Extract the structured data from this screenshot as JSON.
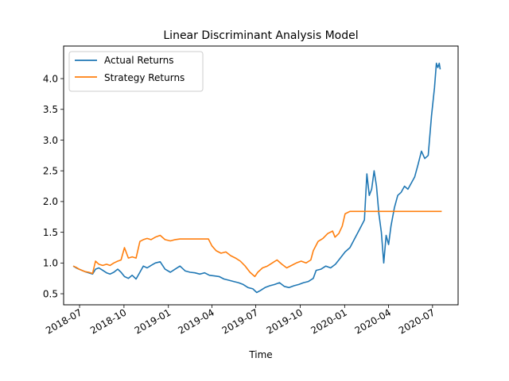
{
  "chart_data": {
    "type": "line",
    "title": "Linear Discriminant Analysis Model",
    "xlabel": "Time",
    "ylabel": "",
    "xlim": [
      "2018-05-29",
      "2020-08-23"
    ],
    "ylim": [
      0.32,
      4.53
    ],
    "yticks": [
      0.5,
      1.0,
      1.5,
      2.0,
      2.5,
      3.0,
      3.5,
      4.0
    ],
    "ytick_labels": [
      "0.5",
      "1.0",
      "1.5",
      "2.0",
      "2.5",
      "3.0",
      "3.5",
      "4.0"
    ],
    "xticks": [
      "2018-07-01",
      "2018-10-01",
      "2019-01-01",
      "2019-04-01",
      "2019-07-01",
      "2019-10-01",
      "2020-01-01",
      "2020-04-01",
      "2020-07-01"
    ],
    "xtick_labels": [
      "2018-07",
      "2018-10",
      "2019-01",
      "2019-04",
      "2019-07",
      "2019-10",
      "2020-01",
      "2020-04",
      "2020-07"
    ],
    "grid": false,
    "legend_position": "top-left",
    "series": [
      {
        "name": "Actual Returns",
        "color": "#1f77b4",
        "points": [
          [
            "2018-06-18",
            0.95
          ],
          [
            "2018-06-24",
            0.92
          ],
          [
            "2018-06-30",
            0.9
          ],
          [
            "2018-07-06",
            0.88
          ],
          [
            "2018-07-12",
            0.86
          ],
          [
            "2018-07-20",
            0.84
          ],
          [
            "2018-07-28",
            0.82
          ],
          [
            "2018-08-03",
            0.9
          ],
          [
            "2018-08-10",
            0.92
          ],
          [
            "2018-08-18",
            0.88
          ],
          [
            "2018-08-26",
            0.84
          ],
          [
            "2018-09-02",
            0.82
          ],
          [
            "2018-09-10",
            0.85
          ],
          [
            "2018-09-18",
            0.9
          ],
          [
            "2018-09-25",
            0.85
          ],
          [
            "2018-10-02",
            0.78
          ],
          [
            "2018-10-10",
            0.75
          ],
          [
            "2018-10-18",
            0.8
          ],
          [
            "2018-10-26",
            0.74
          ],
          [
            "2018-11-03",
            0.85
          ],
          [
            "2018-11-10",
            0.95
          ],
          [
            "2018-11-18",
            0.92
          ],
          [
            "2018-11-26",
            0.96
          ],
          [
            "2018-12-05",
            1.0
          ],
          [
            "2018-12-15",
            1.02
          ],
          [
            "2018-12-25",
            0.9
          ],
          [
            "2019-01-05",
            0.85
          ],
          [
            "2019-01-15",
            0.9
          ],
          [
            "2019-01-25",
            0.95
          ],
          [
            "2019-02-05",
            0.87
          ],
          [
            "2019-02-15",
            0.85
          ],
          [
            "2019-02-25",
            0.84
          ],
          [
            "2019-03-07",
            0.82
          ],
          [
            "2019-03-17",
            0.84
          ],
          [
            "2019-03-27",
            0.8
          ],
          [
            "2019-04-06",
            0.79
          ],
          [
            "2019-04-16",
            0.78
          ],
          [
            "2019-04-26",
            0.74
          ],
          [
            "2019-05-06",
            0.72
          ],
          [
            "2019-05-16",
            0.7
          ],
          [
            "2019-05-26",
            0.68
          ],
          [
            "2019-06-05",
            0.65
          ],
          [
            "2019-06-15",
            0.6
          ],
          [
            "2019-06-25",
            0.58
          ],
          [
            "2019-07-03",
            0.52
          ],
          [
            "2019-07-10",
            0.55
          ],
          [
            "2019-07-20",
            0.6
          ],
          [
            "2019-07-30",
            0.63
          ],
          [
            "2019-08-09",
            0.65
          ],
          [
            "2019-08-19",
            0.68
          ],
          [
            "2019-08-29",
            0.62
          ],
          [
            "2019-09-08",
            0.6
          ],
          [
            "2019-09-18",
            0.63
          ],
          [
            "2019-09-28",
            0.65
          ],
          [
            "2019-10-08",
            0.68
          ],
          [
            "2019-10-18",
            0.7
          ],
          [
            "2019-10-28",
            0.75
          ],
          [
            "2019-11-03",
            0.88
          ],
          [
            "2019-11-13",
            0.9
          ],
          [
            "2019-11-23",
            0.95
          ],
          [
            "2019-12-03",
            0.92
          ],
          [
            "2019-12-13",
            0.98
          ],
          [
            "2019-12-23",
            1.08
          ],
          [
            "2020-01-02",
            1.18
          ],
          [
            "2020-01-12",
            1.25
          ],
          [
            "2020-01-22",
            1.4
          ],
          [
            "2020-02-01",
            1.55
          ],
          [
            "2020-02-11",
            1.7
          ],
          [
            "2020-02-16",
            2.45
          ],
          [
            "2020-02-21",
            2.1
          ],
          [
            "2020-02-26",
            2.2
          ],
          [
            "2020-03-02",
            2.5
          ],
          [
            "2020-03-07",
            2.25
          ],
          [
            "2020-03-12",
            1.8
          ],
          [
            "2020-03-17",
            1.5
          ],
          [
            "2020-03-22",
            1.0
          ],
          [
            "2020-03-27",
            1.45
          ],
          [
            "2020-04-01",
            1.3
          ],
          [
            "2020-04-06",
            1.6
          ],
          [
            "2020-04-13",
            1.9
          ],
          [
            "2020-04-20",
            2.1
          ],
          [
            "2020-04-27",
            2.15
          ],
          [
            "2020-05-04",
            2.25
          ],
          [
            "2020-05-11",
            2.2
          ],
          [
            "2020-05-18",
            2.3
          ],
          [
            "2020-05-25",
            2.4
          ],
          [
            "2020-06-01",
            2.6
          ],
          [
            "2020-06-08",
            2.82
          ],
          [
            "2020-06-15",
            2.7
          ],
          [
            "2020-06-22",
            2.75
          ],
          [
            "2020-06-29",
            3.4
          ],
          [
            "2020-07-05",
            3.85
          ],
          [
            "2020-07-09",
            4.25
          ],
          [
            "2020-07-12",
            4.18
          ],
          [
            "2020-07-15",
            4.25
          ],
          [
            "2020-07-17",
            4.15
          ]
        ]
      },
      {
        "name": "Strategy Returns",
        "color": "#ff7f0e",
        "points": [
          [
            "2018-06-18",
            0.95
          ],
          [
            "2018-06-24",
            0.93
          ],
          [
            "2018-06-30",
            0.9
          ],
          [
            "2018-07-06",
            0.88
          ],
          [
            "2018-07-12",
            0.86
          ],
          [
            "2018-07-20",
            0.85
          ],
          [
            "2018-07-28",
            0.83
          ],
          [
            "2018-08-03",
            1.03
          ],
          [
            "2018-08-10",
            0.98
          ],
          [
            "2018-08-18",
            0.96
          ],
          [
            "2018-08-26",
            0.98
          ],
          [
            "2018-09-02",
            0.96
          ],
          [
            "2018-09-10",
            1.0
          ],
          [
            "2018-09-18",
            1.03
          ],
          [
            "2018-09-25",
            1.05
          ],
          [
            "2018-10-02",
            1.25
          ],
          [
            "2018-10-10",
            1.08
          ],
          [
            "2018-10-18",
            1.1
          ],
          [
            "2018-10-26",
            1.08
          ],
          [
            "2018-11-03",
            1.35
          ],
          [
            "2018-11-10",
            1.38
          ],
          [
            "2018-11-18",
            1.4
          ],
          [
            "2018-11-26",
            1.38
          ],
          [
            "2018-12-05",
            1.42
          ],
          [
            "2018-12-15",
            1.45
          ],
          [
            "2018-12-25",
            1.38
          ],
          [
            "2019-01-05",
            1.36
          ],
          [
            "2019-01-15",
            1.38
          ],
          [
            "2019-01-25",
            1.39
          ],
          [
            "2019-02-05",
            1.39
          ],
          [
            "2019-02-15",
            1.39
          ],
          [
            "2019-02-25",
            1.39
          ],
          [
            "2019-03-07",
            1.39
          ],
          [
            "2019-03-17",
            1.39
          ],
          [
            "2019-03-25",
            1.39
          ],
          [
            "2019-04-01",
            1.28
          ],
          [
            "2019-04-10",
            1.2
          ],
          [
            "2019-04-20",
            1.16
          ],
          [
            "2019-04-30",
            1.18
          ],
          [
            "2019-05-10",
            1.12
          ],
          [
            "2019-05-20",
            1.08
          ],
          [
            "2019-05-30",
            1.03
          ],
          [
            "2019-06-09",
            0.95
          ],
          [
            "2019-06-19",
            0.85
          ],
          [
            "2019-06-29",
            0.78
          ],
          [
            "2019-07-05",
            0.85
          ],
          [
            "2019-07-15",
            0.92
          ],
          [
            "2019-07-25",
            0.95
          ],
          [
            "2019-08-04",
            1.0
          ],
          [
            "2019-08-14",
            1.05
          ],
          [
            "2019-08-24",
            0.98
          ],
          [
            "2019-09-03",
            0.92
          ],
          [
            "2019-09-13",
            0.96
          ],
          [
            "2019-09-23",
            1.0
          ],
          [
            "2019-10-03",
            1.03
          ],
          [
            "2019-10-13",
            1.0
          ],
          [
            "2019-10-23",
            1.05
          ],
          [
            "2019-10-28",
            1.2
          ],
          [
            "2019-11-07",
            1.35
          ],
          [
            "2019-11-17",
            1.4
          ],
          [
            "2019-11-27",
            1.48
          ],
          [
            "2019-12-07",
            1.52
          ],
          [
            "2019-12-12",
            1.42
          ],
          [
            "2019-12-20",
            1.48
          ],
          [
            "2019-12-27",
            1.6
          ],
          [
            "2020-01-02",
            1.8
          ],
          [
            "2020-01-12",
            1.84
          ],
          [
            "2020-02-01",
            1.84
          ],
          [
            "2020-03-01",
            1.84
          ],
          [
            "2020-04-01",
            1.84
          ],
          [
            "2020-05-01",
            1.84
          ],
          [
            "2020-06-01",
            1.84
          ],
          [
            "2020-07-01",
            1.84
          ],
          [
            "2020-07-20",
            1.84
          ]
        ]
      }
    ]
  }
}
